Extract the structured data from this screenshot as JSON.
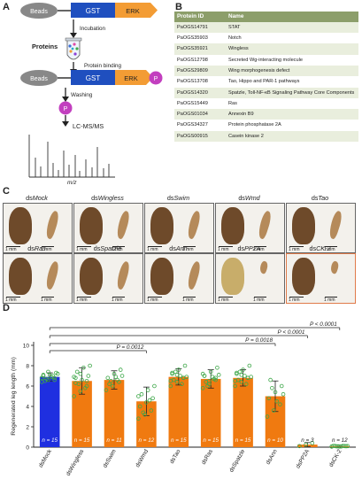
{
  "panel_a": {
    "letter": "A",
    "beads": "Beads",
    "gst": "GST",
    "erk": "ERK",
    "incubation": "Incubation",
    "proteins": "Proteins",
    "protein_binding": "Protein binding",
    "p_label": "P",
    "washing": "Washing",
    "lcms": "LC-MS/MS",
    "mz": "m/z",
    "colors": {
      "beads": "#888888",
      "gst": "#1f4fbf",
      "erk": "#f39c34",
      "p": "#c23fbf"
    }
  },
  "panel_b": {
    "letter": "B",
    "headers": [
      "Protein ID",
      "Name"
    ],
    "rows": [
      [
        "PaOGS14791",
        "STAT"
      ],
      [
        "PaOGS35903",
        "Notch"
      ],
      [
        "PaOGS35921",
        "Wingless"
      ],
      [
        "PaOGS12798",
        "Secreted Wg-interacting molecule"
      ],
      [
        "PaOGS29809",
        "Wing morphogenesis defect"
      ],
      [
        "PaOGS13708",
        "Tao, Hippo and PAR-1 pathways"
      ],
      [
        "PaOGS14320",
        "Spatzle, Toll-NF-κB Signaling Pathway Core Components"
      ],
      [
        "PaOGS15449",
        "Ras"
      ],
      [
        "PaOGS01034",
        "Annexin B9"
      ],
      [
        "PaOGS34327",
        "Protein phosphatase 2A"
      ],
      [
        "PaOGS00915",
        "Casein kinase 2"
      ]
    ]
  },
  "panel_c": {
    "letter": "C",
    "scale": "1 mm",
    "photos": [
      {
        "prefix": "ds",
        "name": "Mock"
      },
      {
        "prefix": "ds",
        "name": "Wingless"
      },
      {
        "prefix": "ds",
        "name": "Swim"
      },
      {
        "prefix": "ds",
        "name": "Wmd"
      },
      {
        "prefix": "ds",
        "name": "Tao"
      },
      {
        "prefix": "ds",
        "name": "Ras"
      },
      {
        "prefix": "ds",
        "name": "Spatzle"
      },
      {
        "prefix": "ds",
        "name": "Ann"
      },
      {
        "prefix": "ds",
        "name": "PP2A"
      },
      {
        "prefix": "ds",
        "name": "CK-2"
      }
    ]
  },
  "chart_data": {
    "type": "bar",
    "panel_letter": "D",
    "ylabel": "Regenerated leg length (mm)",
    "ylim": [
      0,
      10
    ],
    "yticks": [
      0,
      2,
      4,
      6,
      8,
      10
    ],
    "categories": [
      "dsMock",
      "dsWingless",
      "dsSwim",
      "dsWmd",
      "dsTao",
      "dsRas",
      "dsSpatzle",
      "dsAnn",
      "dsPP2A",
      "dsCK-2"
    ],
    "values": [
      6.9,
      6.5,
      6.6,
      4.5,
      6.9,
      6.7,
      6.8,
      5.0,
      0.25,
      0.1
    ],
    "errors": [
      0.4,
      1.3,
      0.9,
      1.4,
      0.8,
      0.9,
      0.8,
      1.5,
      0.2,
      0.1
    ],
    "n_labels": [
      "n = 15",
      "n = 15",
      "n = 11",
      "n = 12",
      "n = 15",
      "n = 15",
      "n = 15",
      "n = 10",
      "n = 3",
      "n = 12"
    ],
    "bar_colors": [
      "#1f2fe0",
      "#f07a10",
      "#f07a10",
      "#f07a10",
      "#f07a10",
      "#f07a10",
      "#f07a10",
      "#f07a10",
      "#f07a10",
      "#f07a10"
    ],
    "point_color": "#3fa84a",
    "points": [
      [
        6.4,
        6.6,
        6.8,
        7.0,
        7.1,
        7.3,
        6.5,
        6.9,
        7.2,
        6.7,
        7.0,
        6.8,
        7.4,
        6.6,
        7.1
      ],
      [
        5.0,
        5.5,
        6.0,
        6.3,
        6.6,
        7.0,
        7.4,
        7.8,
        8.0,
        6.2,
        5.8,
        6.9,
        7.2,
        6.5,
        6.8
      ],
      [
        5.6,
        6.0,
        6.4,
        6.8,
        7.2,
        7.6,
        6.2,
        6.9,
        7.0,
        6.5,
        6.6
      ],
      [
        2.8,
        3.2,
        3.6,
        4.0,
        4.4,
        4.8,
        5.2,
        5.6,
        6.0,
        3.4,
        4.6,
        5.0
      ],
      [
        6.0,
        6.4,
        6.8,
        7.2,
        7.6,
        8.0,
        6.6,
        7.0,
        6.9,
        7.4,
        6.2,
        6.5,
        7.1,
        6.8,
        7.3
      ],
      [
        5.8,
        6.2,
        6.6,
        7.0,
        7.4,
        7.8,
        6.4,
        6.9,
        7.1,
        6.0,
        6.7,
        7.2,
        6.5,
        6.8,
        7.0
      ],
      [
        6.0,
        6.4,
        6.8,
        7.2,
        7.6,
        8.0,
        6.6,
        7.0,
        6.9,
        7.4,
        6.2,
        6.5,
        7.1,
        6.8,
        7.3
      ],
      [
        3.0,
        3.6,
        4.2,
        4.8,
        5.4,
        6.0,
        6.6,
        4.5,
        5.2,
        5.8
      ],
      [
        0.1,
        0.25,
        0.4
      ],
      [
        0.05,
        0.08,
        0.1,
        0.12,
        0.06,
        0.09,
        0.11,
        0.07,
        0.1,
        0.08,
        0.12,
        0.06
      ]
    ],
    "comparisons": [
      {
        "from": "dsMock",
        "to": "dsWmd",
        "label": "P = 0.0012"
      },
      {
        "from": "dsMock",
        "to": "dsAnn",
        "label": "P = 0.0018"
      },
      {
        "from": "dsMock",
        "to": "dsPP2A",
        "label": "P < 0.0001"
      },
      {
        "from": "dsMock",
        "to": "dsCK-2",
        "label": "P < 0.0001"
      }
    ]
  }
}
